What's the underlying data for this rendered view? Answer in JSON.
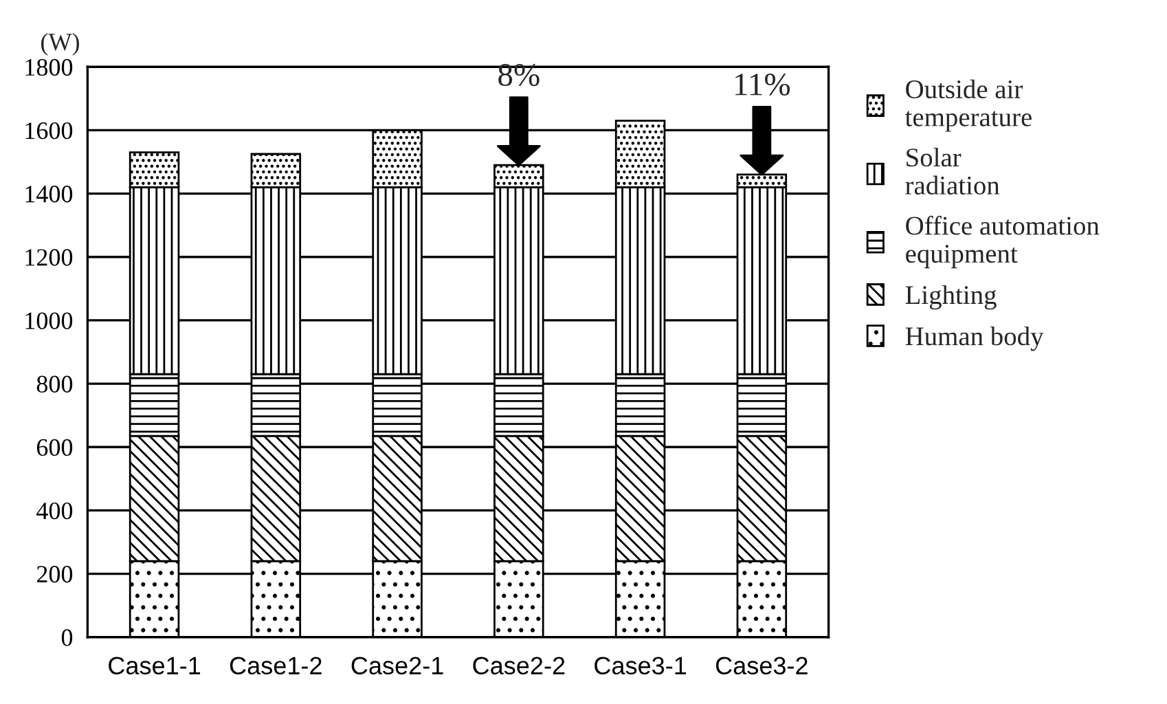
{
  "chart_data": {
    "type": "bar",
    "stacked": true,
    "ylabel": "(W)",
    "categories": [
      "Case1-1",
      "Case1-2",
      "Case2-1",
      "Case2-2",
      "Case3-1",
      "Case3-2"
    ],
    "series": [
      {
        "name": "Human body",
        "color": "#000000",
        "values": [
          240,
          240,
          240,
          240,
          240,
          240
        ]
      },
      {
        "name": "Lighting",
        "color": "#000000",
        "values": [
          395,
          395,
          395,
          395,
          395,
          395
        ]
      },
      {
        "name": "Office automation equipment",
        "color": "#000000",
        "values": [
          195,
          195,
          195,
          195,
          195,
          195
        ]
      },
      {
        "name": "Solar radiation",
        "color": "#000000",
        "values": [
          590,
          590,
          590,
          590,
          590,
          590
        ]
      },
      {
        "name": "Outside air temperature",
        "color": "#000000",
        "values": [
          110,
          105,
          180,
          70,
          210,
          40
        ]
      }
    ],
    "annotations": [
      {
        "text": "8%",
        "x": "Case2-2",
        "y": 1490
      },
      {
        "text": "11%",
        "x": "Case3-2",
        "y": 1460
      }
    ],
    "ylim": [
      0,
      1800
    ],
    "yticks": [
      0,
      200,
      400,
      600,
      800,
      1000,
      1200,
      1400,
      1600,
      1800
    ],
    "grid": "y",
    "legend": "right"
  }
}
